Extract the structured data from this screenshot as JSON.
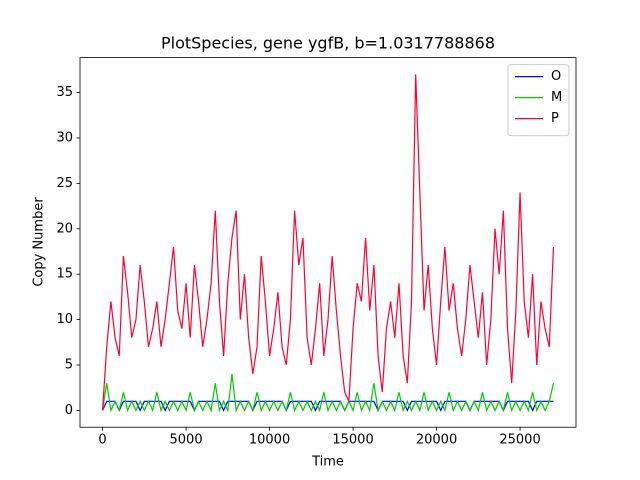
{
  "chart_data": {
    "type": "line",
    "title": "PlotSpecies, gene ygfB, b=1.0317788868",
    "x_label": "Time",
    "y_label": "Copy Number",
    "x": [
      0,
      250,
      500,
      750,
      1000,
      1250,
      1500,
      1750,
      2000,
      2250,
      2500,
      2750,
      3000,
      3250,
      3500,
      3750,
      4000,
      4250,
      4500,
      4750,
      5000,
      5250,
      5500,
      5750,
      6000,
      6250,
      6500,
      6750,
      7000,
      7250,
      7500,
      7750,
      8000,
      8250,
      8500,
      8750,
      9000,
      9250,
      9500,
      9750,
      10000,
      10250,
      10500,
      10750,
      11000,
      11250,
      11500,
      11750,
      12000,
      12250,
      12500,
      12750,
      13000,
      13250,
      13500,
      13750,
      14000,
      14250,
      14500,
      14750,
      15000,
      15250,
      15500,
      15750,
      16000,
      16250,
      16500,
      16750,
      17000,
      17250,
      17500,
      17750,
      18000,
      18250,
      18500,
      18750,
      19000,
      19250,
      19500,
      19750,
      20000,
      20250,
      20500,
      20750,
      21000,
      21250,
      21500,
      21750,
      22000,
      22250,
      22500,
      22750,
      23000,
      23250,
      23500,
      23750,
      24000,
      24250,
      24500,
      24750,
      25000,
      25250,
      25500,
      25750,
      26000,
      26250,
      26500,
      26750,
      27000
    ],
    "series": [
      {
        "name": "O",
        "color": "#0000ff",
        "values": [
          0,
          1,
          1,
          1,
          0,
          1,
          1,
          1,
          1,
          0,
          1,
          1,
          1,
          1,
          1,
          0,
          1,
          1,
          1,
          1,
          1,
          1,
          0,
          1,
          1,
          1,
          1,
          1,
          1,
          0,
          1,
          1,
          1,
          1,
          1,
          1,
          0,
          1,
          1,
          1,
          1,
          1,
          1,
          1,
          0,
          1,
          1,
          1,
          1,
          1,
          1,
          0,
          1,
          1,
          1,
          1,
          1,
          1,
          0,
          1,
          1,
          1,
          1,
          1,
          1,
          1,
          0,
          1,
          1,
          1,
          1,
          1,
          1,
          0,
          1,
          1,
          1,
          1,
          1,
          1,
          1,
          0,
          1,
          1,
          1,
          1,
          1,
          1,
          0,
          1,
          1,
          1,
          1,
          1,
          1,
          1,
          0,
          1,
          1,
          1,
          1,
          1,
          1,
          0,
          1,
          1,
          1,
          1,
          1
        ]
      },
      {
        "name": "M",
        "color": "#00cc00",
        "values": [
          0,
          3,
          0,
          1,
          0,
          2,
          0,
          1,
          0,
          1,
          0,
          1,
          0,
          2,
          0,
          1,
          0,
          1,
          0,
          1,
          0,
          2,
          0,
          1,
          0,
          1,
          0,
          3,
          0,
          1,
          0,
          4,
          0,
          1,
          0,
          1,
          0,
          2,
          0,
          1,
          0,
          1,
          0,
          1,
          0,
          2,
          0,
          1,
          0,
          1,
          0,
          1,
          0,
          2,
          0,
          1,
          0,
          1,
          0,
          1,
          0,
          2,
          0,
          1,
          0,
          3,
          0,
          1,
          0,
          1,
          0,
          2,
          0,
          1,
          0,
          1,
          0,
          2,
          0,
          1,
          0,
          1,
          0,
          2,
          0,
          1,
          0,
          1,
          0,
          1,
          0,
          2,
          0,
          1,
          0,
          1,
          0,
          2,
          0,
          1,
          0,
          1,
          0,
          2,
          0,
          1,
          0,
          1,
          3
        ]
      },
      {
        "name": "P",
        "color": "#ff0033",
        "values": [
          0,
          7,
          12,
          8,
          6,
          17,
          13,
          8,
          10,
          16,
          12,
          7,
          9,
          12,
          7,
          10,
          14,
          18,
          11,
          9,
          14,
          8,
          16,
          12,
          7,
          10,
          14,
          22,
          12,
          6,
          14,
          19,
          22,
          10,
          15,
          8,
          4,
          7,
          17,
          12,
          6,
          9,
          13,
          7,
          5,
          10,
          22,
          16,
          19,
          8,
          5,
          9,
          14,
          6,
          10,
          17,
          11,
          6,
          2,
          1,
          9,
          14,
          12,
          19,
          11,
          16,
          6,
          2,
          9,
          12,
          8,
          14,
          6,
          3,
          12,
          37,
          24,
          11,
          16,
          9,
          5,
          12,
          18,
          11,
          14,
          9,
          6,
          10,
          16,
          12,
          8,
          13,
          5,
          10,
          20,
          15,
          22,
          9,
          3,
          11,
          24,
          12,
          8,
          15,
          5,
          12,
          9,
          7,
          18
        ]
      }
    ],
    "xlim": [
      -1350,
      28350
    ],
    "ylim": [
      -1.85,
      38.85
    ],
    "xticks": [
      0,
      5000,
      10000,
      15000,
      20000,
      25000
    ],
    "yticks": [
      0,
      5,
      10,
      15,
      20,
      25,
      30,
      35
    ],
    "grid": false,
    "legend": "upper right"
  }
}
